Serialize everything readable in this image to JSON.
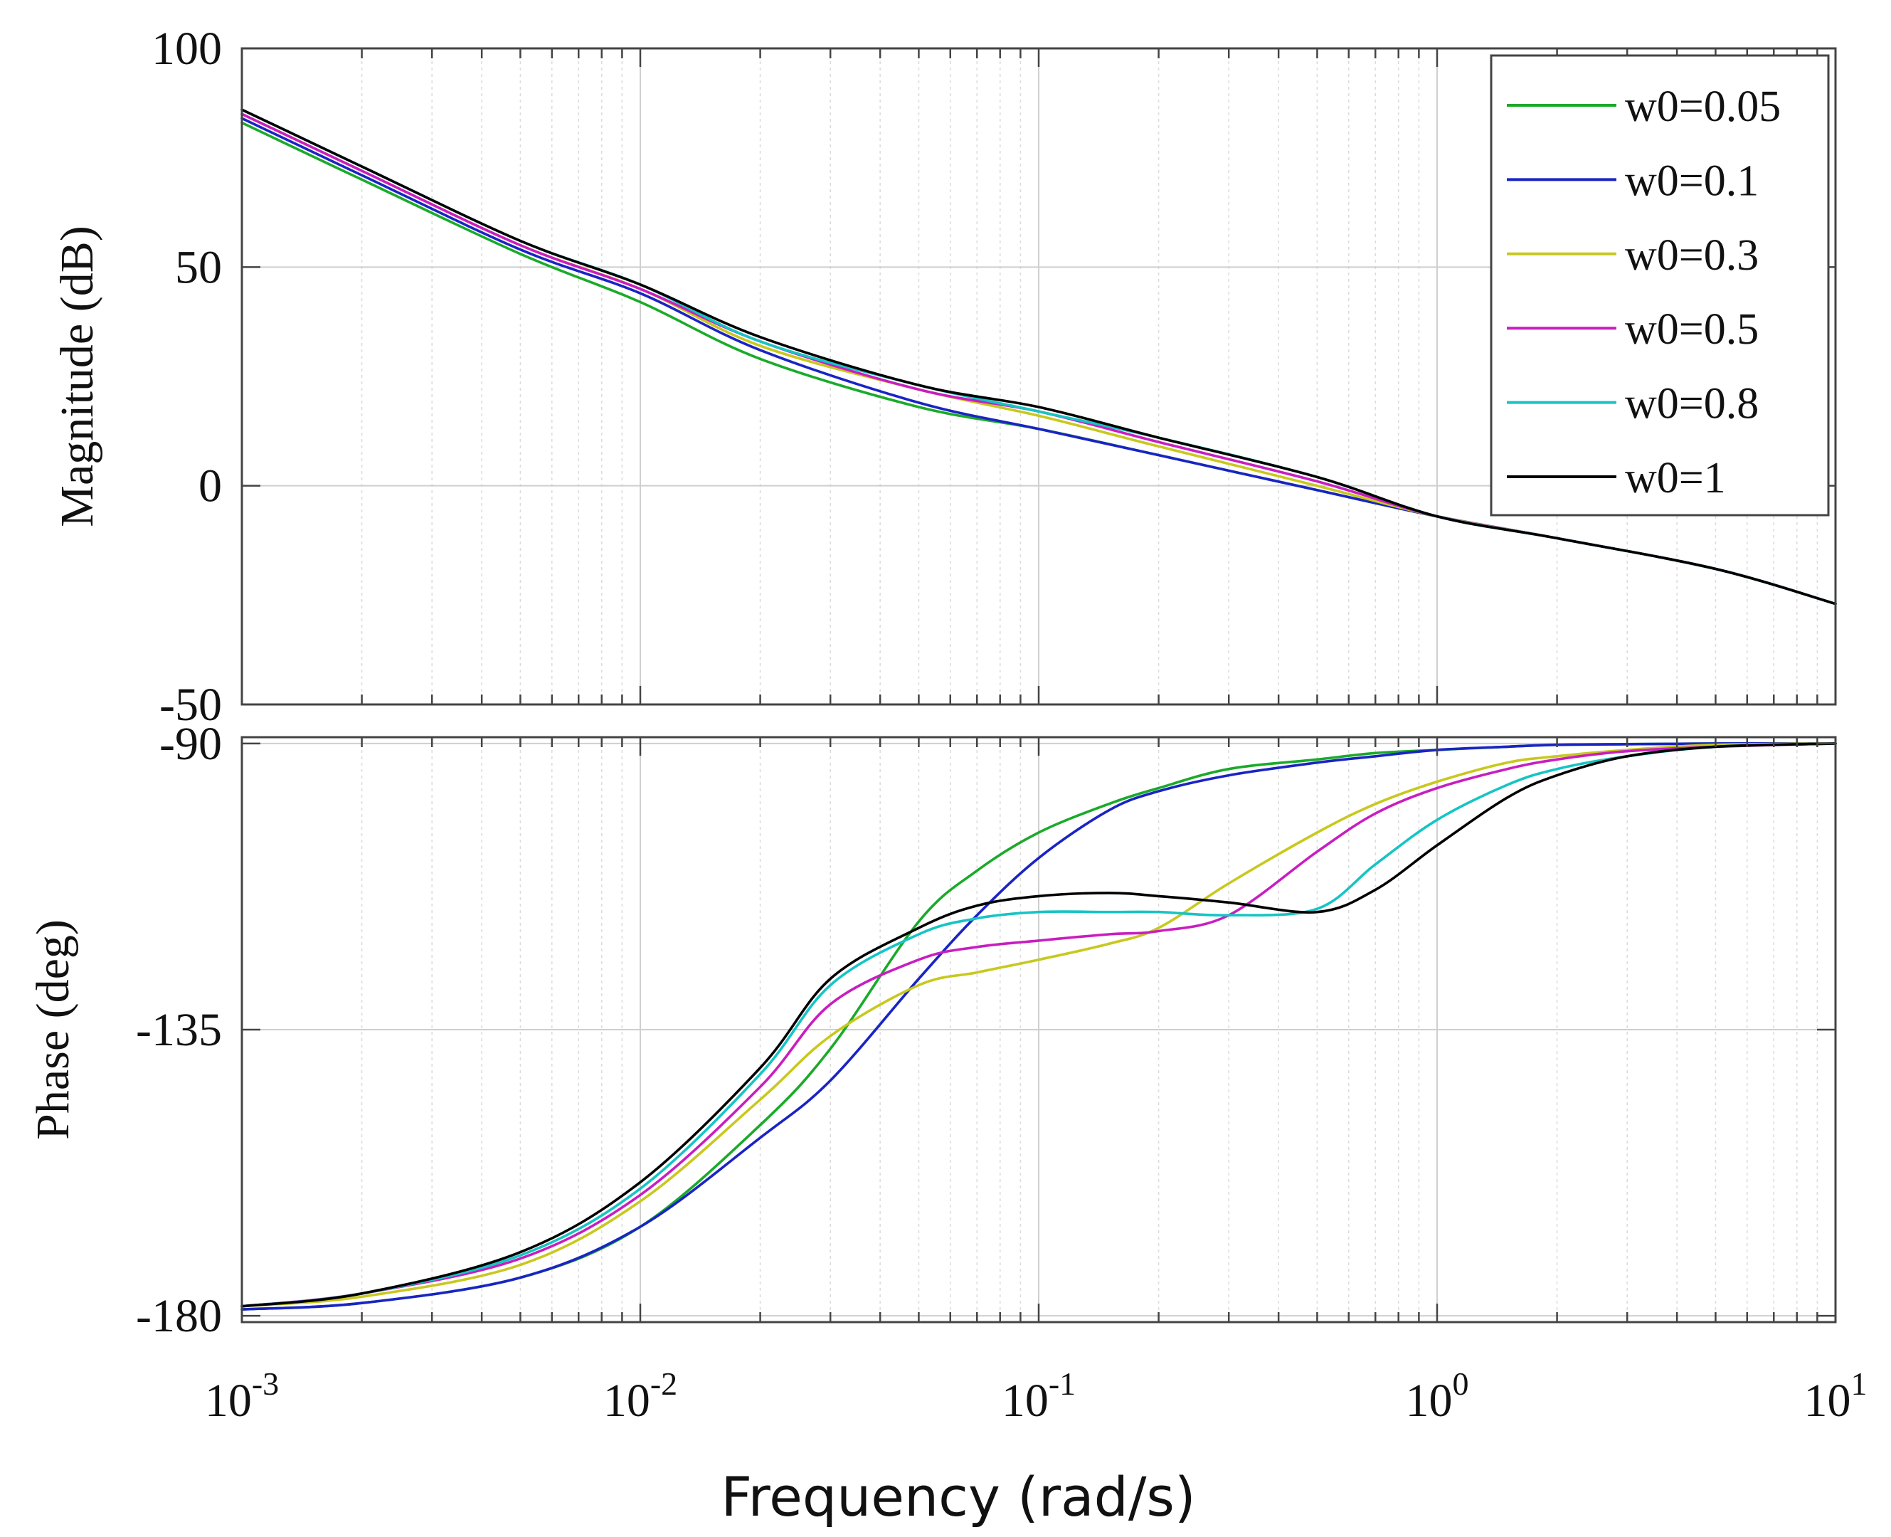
{
  "chart_data": {
    "type": "line",
    "title": "",
    "xlabel": "Frequency (rad/s)",
    "xscale": "log",
    "xlim": [
      0.001,
      10
    ],
    "x_tick_labels": [
      {
        "base": "10",
        "exp": "-3"
      },
      {
        "base": "10",
        "exp": "-2"
      },
      {
        "base": "10",
        "exp": "-1"
      },
      {
        "base": "10",
        "exp": "0"
      },
      {
        "base": "10",
        "exp": "1"
      }
    ],
    "grid": true,
    "legend": {
      "position": "top-right",
      "entries": [
        "w0=0.05",
        "w0=0.1",
        "w0=0.3",
        "w0=0.5",
        "w0=0.8",
        "w0=1"
      ]
    },
    "colors": {
      "w0=0.05": "#1aaa2a",
      "w0=0.1": "#1a24c4",
      "w0=0.3": "#c8c81e",
      "w0=0.5": "#c81ec0",
      "w0=0.8": "#16c4c4",
      "w0=1": "#000000"
    },
    "magnitude": {
      "ylabel": "Magnitude (dB)",
      "ylim": [
        -50,
        100
      ],
      "y_ticks": [
        -50,
        0,
        50,
        100
      ],
      "y_tick_labels": [
        "-50",
        "0",
        "50",
        "100"
      ],
      "x": [
        0.001,
        0.002,
        0.005,
        0.01,
        0.02,
        0.05,
        0.1,
        0.2,
        0.5,
        1,
        2,
        5,
        10
      ],
      "series": [
        {
          "name": "w0=0.05",
          "values": [
            83,
            70,
            53,
            42,
            29,
            18,
            13,
            7,
            -1,
            -7,
            -12,
            -19,
            -27
          ]
        },
        {
          "name": "w0=0.1",
          "values": [
            84,
            71,
            54,
            44,
            31,
            19,
            13,
            7,
            -1,
            -7,
            -12,
            -19,
            -27
          ]
        },
        {
          "name": "w0=0.3",
          "values": [
            85,
            72,
            55,
            45,
            32,
            22,
            16,
            9,
            0,
            -7,
            -12,
            -19,
            -27
          ]
        },
        {
          "name": "w0=0.5",
          "values": [
            85,
            72,
            55,
            45,
            33,
            22,
            17,
            10,
            1,
            -7,
            -12,
            -19,
            -27
          ]
        },
        {
          "name": "w0=0.8",
          "values": [
            86,
            73,
            56,
            46,
            33,
            23,
            17,
            11,
            2,
            -7,
            -12,
            -19,
            -27
          ]
        },
        {
          "name": "w0=1",
          "values": [
            86,
            73,
            56,
            46,
            34,
            23,
            18,
            11,
            2,
            -7,
            -12,
            -19,
            -27
          ]
        }
      ]
    },
    "phase": {
      "ylabel": "Phase (deg)",
      "ylim": [
        -181,
        -89
      ],
      "y_ticks": [
        -180,
        -135,
        -90
      ],
      "y_tick_labels": [
        "-180",
        "-135",
        "-90"
      ],
      "x": [
        0.001,
        0.002,
        0.005,
        0.01,
        0.02,
        0.03,
        0.05,
        0.07,
        0.1,
        0.15,
        0.2,
        0.3,
        0.5,
        0.7,
        1,
        1.5,
        2,
        3,
        5,
        10
      ],
      "series": [
        {
          "name": "w0=0.05",
          "values": [
            -179,
            -178,
            -174,
            -166,
            -150,
            -138,
            -118,
            -110,
            -104,
            -99.5,
            -97,
            -94,
            -92.5,
            -91.5,
            -91,
            -90.5,
            -90.2,
            -90.1,
            -90,
            -90
          ]
        },
        {
          "name": "w0=0.1",
          "values": [
            -179,
            -178,
            -174,
            -166,
            -152,
            -143,
            -127,
            -117,
            -108,
            -100.5,
            -97.5,
            -95,
            -93,
            -92,
            -91,
            -90.5,
            -90.2,
            -90.1,
            -90,
            -90
          ]
        },
        {
          "name": "w0=0.3",
          "values": [
            -178.5,
            -177,
            -172,
            -162,
            -146,
            -136,
            -128,
            -126,
            -124,
            -121.5,
            -119,
            -112,
            -104,
            -99.5,
            -96,
            -93,
            -92,
            -91,
            -90.2,
            -90
          ]
        },
        {
          "name": "w0=0.5",
          "values": [
            -178.5,
            -176.5,
            -171,
            -161,
            -144,
            -131,
            -124,
            -122,
            -121,
            -120,
            -119.5,
            -117,
            -107,
            -101,
            -97,
            -94,
            -92.5,
            -91.2,
            -90.5,
            -90
          ]
        },
        {
          "name": "w0=0.8",
          "values": [
            -178.5,
            -176.5,
            -170.5,
            -160,
            -142,
            -128,
            -120,
            -117.5,
            -116.5,
            -116.5,
            -116.5,
            -117,
            -116,
            -109,
            -102,
            -96.5,
            -94,
            -92,
            -90.5,
            -90
          ]
        },
        {
          "name": "w0=1",
          "values": [
            -178.5,
            -176.5,
            -170,
            -159,
            -141,
            -127,
            -119,
            -115.5,
            -114,
            -113.5,
            -114,
            -115,
            -116.5,
            -113,
            -106,
            -98.5,
            -95,
            -92,
            -90.5,
            -90
          ]
        }
      ]
    }
  }
}
